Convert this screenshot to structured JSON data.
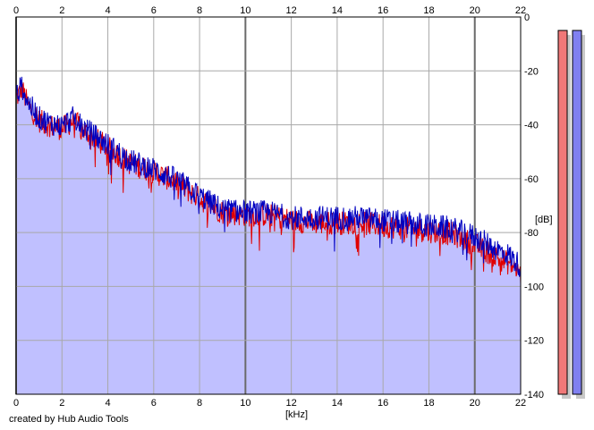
{
  "chart_data": {
    "type": "area",
    "xlabel": "[kHz]",
    "ylabel": "[dB]",
    "xlim": [
      0,
      22
    ],
    "ylim": [
      -140,
      0
    ],
    "x_ticks": [
      "0",
      "2",
      "4",
      "6",
      "8",
      "10",
      "12",
      "14",
      "16",
      "18",
      "20",
      "22"
    ],
    "y_ticks": [
      "0",
      "-20",
      "-40",
      "-60",
      "-80",
      "-100",
      "-120",
      "-140"
    ],
    "grid": true,
    "series": [
      {
        "color": "#e00000",
        "x": [
          0,
          0.25,
          0.5,
          1,
          1.5,
          2,
          2.5,
          3,
          4,
          5,
          6,
          7,
          8,
          9,
          10,
          11,
          12,
          13,
          14,
          15,
          16,
          17,
          18,
          19,
          20,
          21,
          21.5,
          22
        ],
        "values": [
          -30,
          -26,
          -32,
          -38,
          -40,
          -41,
          -38,
          -42,
          -48,
          -54,
          -57,
          -61,
          -67,
          -72,
          -73,
          -73,
          -75,
          -76,
          -76,
          -76,
          -77,
          -78,
          -79,
          -80,
          -84,
          -89,
          -91,
          -95
        ]
      },
      {
        "color": "#0000c0",
        "x": [
          0,
          0.25,
          0.5,
          1,
          1.5,
          2,
          2.5,
          3,
          4,
          5,
          6,
          7,
          8,
          9,
          10,
          11,
          12,
          13,
          14,
          15,
          16,
          17,
          18,
          19,
          20,
          21,
          21.5,
          22
        ],
        "values": [
          -29,
          -25,
          -31,
          -37,
          -39,
          -40,
          -37,
          -41,
          -47,
          -53,
          -56,
          -60,
          -66,
          -71,
          -72,
          -72,
          -74,
          -74,
          -74,
          -74,
          -75,
          -76,
          -77,
          -78,
          -81,
          -86,
          -88,
          -92
        ]
      }
    ],
    "fill_color": "#c0c0ff",
    "meters": [
      {
        "color": "#f07878",
        "level_db": -5
      },
      {
        "color": "#8080f0",
        "level_db": -5
      }
    ]
  },
  "credit": "created by Hub Audio Tools"
}
